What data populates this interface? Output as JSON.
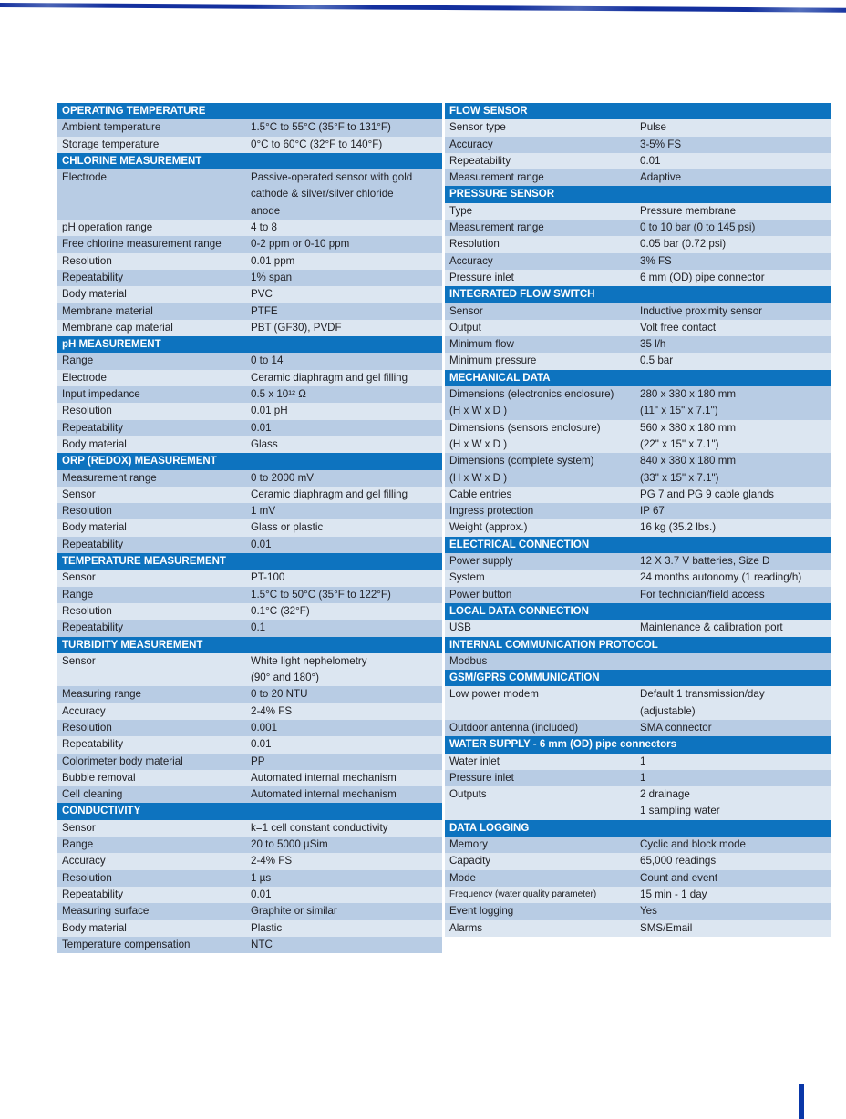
{
  "colors": {
    "header_blue": "#0d73bf",
    "row_light": "#dce6f1",
    "row_medium": "#b8cce4",
    "header_text": "#ffffff",
    "body_text": "#212126",
    "top_rule_blue": "#14309e",
    "footer_bar_blue": "#0a37a8"
  },
  "left_table": {
    "first_row_shade": "medium",
    "sections": [
      {
        "header": "OPERATING TEMPERATURE",
        "rows": [
          {
            "label": "Ambient temperature",
            "value": "1.5°C to 55°C (35°F to 131°F)"
          },
          {
            "label": "Storage temperature",
            "value": "0°C to 60°C (32°F to 140°F)"
          }
        ]
      },
      {
        "header": "CHLORINE MEASUREMENT",
        "rows": [
          {
            "label": "Electrode",
            "value": "Passive-operated sensor with gold\ncathode & silver/silver chloride\nanode"
          },
          {
            "label": "pH operation range",
            "value": "4 to 8"
          },
          {
            "label": "Free chlorine measurement range",
            "value": "0-2 ppm or 0-10 ppm"
          },
          {
            "label": "Resolution",
            "value": "0.01 ppm"
          },
          {
            "label": "Repeatability",
            "value": "1% span"
          },
          {
            "label": "Body material",
            "value": "PVC"
          },
          {
            "label": "Membrane material",
            "value": "PTFE"
          },
          {
            "label": "Membrane cap material",
            "value": "PBT (GF30), PVDF"
          }
        ]
      },
      {
        "header": "pH MEASUREMENT",
        "rows": [
          {
            "label": "Range",
            "value": "0 to 14"
          },
          {
            "label": "Electrode",
            "value": "Ceramic diaphragm and gel filling"
          },
          {
            "label": "Input impedance",
            "value": "0.5 x 10¹² Ω"
          },
          {
            "label": "Resolution",
            "value": "0.01 pH"
          },
          {
            "label": "Repeatability",
            "value": "0.01"
          },
          {
            "label": "Body material",
            "value": "Glass"
          }
        ]
      },
      {
        "header": "ORP (REDOX) MEASUREMENT",
        "rows": [
          {
            "label": "Measurement range",
            "value": "0 to 2000 mV"
          },
          {
            "label": "Sensor",
            "value": "Ceramic diaphragm and gel filling"
          },
          {
            "label": "Resolution",
            "value": "1 mV"
          },
          {
            "label": "Body material",
            "value": "Glass or plastic"
          },
          {
            "label": "Repeatability",
            "value": "0.01"
          }
        ]
      },
      {
        "header": "TEMPERATURE MEASUREMENT",
        "rows": [
          {
            "label": "Sensor",
            "value": "PT-100"
          },
          {
            "label": "Range",
            "value": "1.5°C to 50°C (35°F to 122°F)"
          },
          {
            "label": "Resolution",
            "value": "0.1°C (32°F)"
          },
          {
            "label": "Repeatability",
            "value": "0.1"
          }
        ]
      },
      {
        "header": "TURBIDITY MEASUREMENT",
        "rows": [
          {
            "label": "Sensor",
            "value": "White light nephelometry\n(90° and 180°)"
          },
          {
            "label": "Measuring range",
            "value": "0 to 20 NTU"
          },
          {
            "label": "Accuracy",
            "value": "2-4% FS"
          },
          {
            "label": "Resolution",
            "value": "0.001"
          },
          {
            "label": "Repeatability",
            "value": "0.01"
          },
          {
            "label": "Colorimeter body material",
            "value": "PP"
          },
          {
            "label": "Bubble removal",
            "value": "Automated internal mechanism"
          },
          {
            "label": "Cell cleaning",
            "value": "Automated internal mechanism"
          }
        ]
      },
      {
        "header": "CONDUCTIVITY",
        "rows": [
          {
            "label": "Sensor",
            "value": "k=1 cell constant conductivity"
          },
          {
            "label": "Range",
            "value": "20 to 5000 µSim"
          },
          {
            "label": "Accuracy",
            "value": "2-4% FS"
          },
          {
            "label": "Resolution",
            "value": "1 µs"
          },
          {
            "label": "Repeatability",
            "value": "0.01"
          },
          {
            "label": "Measuring surface",
            "value": "Graphite or similar"
          },
          {
            "label": "Body material",
            "value": "Plastic"
          },
          {
            "label": "Temperature compensation",
            "value": "NTC"
          }
        ]
      }
    ]
  },
  "right_table": {
    "first_row_shade": "light",
    "sections": [
      {
        "header": "FLOW SENSOR",
        "rows": [
          {
            "label": "Sensor type",
            "value": "Pulse"
          },
          {
            "label": "Accuracy",
            "value": "3-5% FS"
          },
          {
            "label": "Repeatability",
            "value": "0.01"
          },
          {
            "label": "Measurement range",
            "value": "Adaptive"
          }
        ]
      },
      {
        "header": "PRESSURE SENSOR",
        "rows": [
          {
            "label": "Type",
            "value": "Pressure membrane"
          },
          {
            "label": "Measurement range",
            "value": "0 to 10 bar (0 to 145 psi)"
          },
          {
            "label": "Resolution",
            "value": "0.05 bar (0.72 psi)"
          },
          {
            "label": "Accuracy",
            "value": "3% FS"
          },
          {
            "label": "Pressure inlet",
            "value": "6 mm (OD) pipe connector"
          }
        ]
      },
      {
        "header": "INTEGRATED FLOW SWITCH",
        "rows": [
          {
            "label": "Sensor",
            "value": "Inductive proximity sensor"
          },
          {
            "label": "Output",
            "value": "Volt free contact"
          },
          {
            "label": "Minimum flow",
            "value": "35 l/h"
          },
          {
            "label": "Minimum pressure",
            "value": "0.5 bar"
          }
        ]
      },
      {
        "header": "MECHANICAL DATA",
        "rows": [
          {
            "label": "Dimensions (electronics enclosure)\n(H x W x D )",
            "value": "280 x 380 x 180 mm\n(11\" x 15\" x 7.1\")"
          },
          {
            "label": "Dimensions (sensors enclosure)\n(H x W x D )",
            "value": "560 x 380 x 180 mm\n(22\" x 15\" x 7.1\")"
          },
          {
            "label": "Dimensions (complete system)\n(H x W x D )",
            "value": "840 x 380 x 180 mm\n(33\" x 15\" x 7.1\")"
          },
          {
            "label": "Cable entries",
            "value": "PG 7 and PG 9 cable glands"
          },
          {
            "label": "Ingress protection",
            "value": "IP 67"
          },
          {
            "label": "Weight (approx.)",
            "value": "16 kg (35.2 lbs.)"
          }
        ]
      },
      {
        "header": "ELECTRICAL CONNECTION",
        "rows": [
          {
            "label": "Power supply",
            "value": "12 X 3.7 V batteries, Size D"
          },
          {
            "label": "System",
            "value": "24 months autonomy (1 reading/h)"
          },
          {
            "label": "Power button",
            "value": "For technician/field access"
          }
        ]
      },
      {
        "header": "LOCAL DATA CONNECTION",
        "rows": [
          {
            "label": "USB",
            "value": "Maintenance & calibration port"
          }
        ]
      },
      {
        "header": "INTERNAL COMMUNICATION PROTOCOL",
        "rows": [
          {
            "label": "Modbus",
            "value": ""
          }
        ]
      },
      {
        "header": "GSM/GPRS COMMUNICATION",
        "rows": [
          {
            "label": "Low power modem",
            "value": "Default 1 transmission/day\n(adjustable)"
          },
          {
            "label": "Outdoor antenna (included)",
            "value": "SMA connector"
          }
        ]
      },
      {
        "header": "WATER SUPPLY - 6 mm (OD) pipe connectors",
        "rows": [
          {
            "label": "Water inlet",
            "value": "1"
          },
          {
            "label": "Pressure inlet",
            "value": "1"
          },
          {
            "label": "Outputs",
            "value": "2 drainage\n1 sampling water"
          }
        ]
      },
      {
        "header": "DATA LOGGING",
        "rows": [
          {
            "label": "Memory",
            "value": "Cyclic and block mode"
          },
          {
            "label": "Capacity",
            "value": "65,000 readings"
          },
          {
            "label": "Mode",
            "value": "Count and event"
          },
          {
            "label": "Frequency (water quality parameter)",
            "value": "15 min - 1 day",
            "small": true
          },
          {
            "label": "Event logging",
            "value": "Yes"
          },
          {
            "label": "Alarms",
            "value": "SMS/Email"
          }
        ]
      }
    ]
  }
}
